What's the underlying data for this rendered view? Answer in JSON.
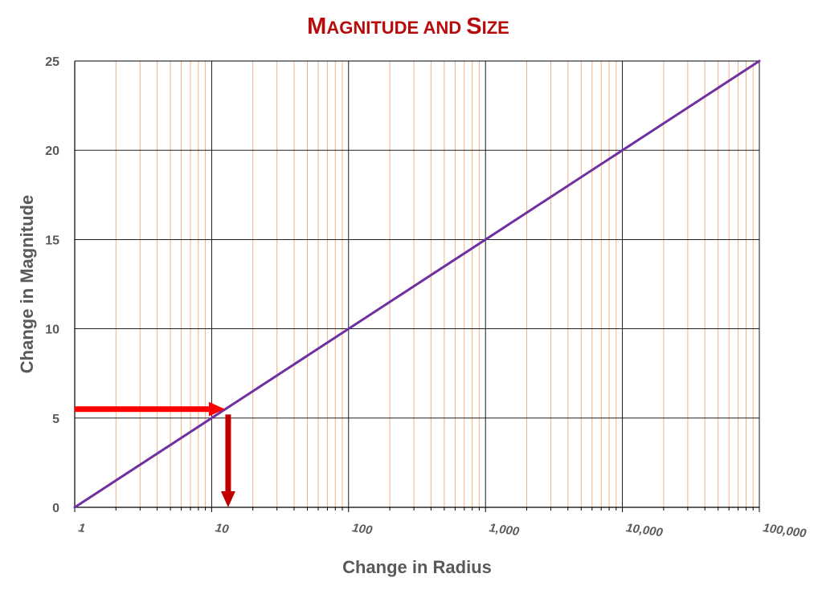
{
  "chart_data": {
    "type": "line",
    "title": "Magnitude and Size",
    "xlabel": "Change in Radius",
    "ylabel": "Change in Magnitude",
    "x_scale": "log",
    "x_ticks": [
      1,
      10,
      100,
      1000,
      10000,
      100000
    ],
    "x_tick_labels": [
      "1",
      "10",
      "100",
      "1,000",
      "10,000",
      "100,000"
    ],
    "xlim": [
      1,
      100000
    ],
    "y_ticks": [
      0,
      5,
      10,
      15,
      20,
      25
    ],
    "y_tick_labels": [
      "0",
      "5",
      "10",
      "15",
      "20",
      "25"
    ],
    "ylim": [
      0,
      25
    ],
    "grid": {
      "major": true,
      "minor_x": true,
      "major_color": "#000000",
      "minor_color": "#f4b183"
    },
    "series": [
      {
        "color": "#7030a0",
        "x": [
          1,
          100000
        ],
        "y": [
          0,
          25
        ]
      }
    ],
    "annotations": [
      {
        "type": "arrow",
        "direction": "right",
        "color": "#ff0000",
        "from": {
          "x": 1,
          "y": 5.5
        },
        "to": {
          "x": 12.5,
          "y": 5.5
        }
      },
      {
        "type": "arrow",
        "direction": "down",
        "color": "#c00000",
        "from": {
          "x": 13.2,
          "y": 5.2
        },
        "to": {
          "x": 13.2,
          "y": 0
        }
      }
    ]
  }
}
